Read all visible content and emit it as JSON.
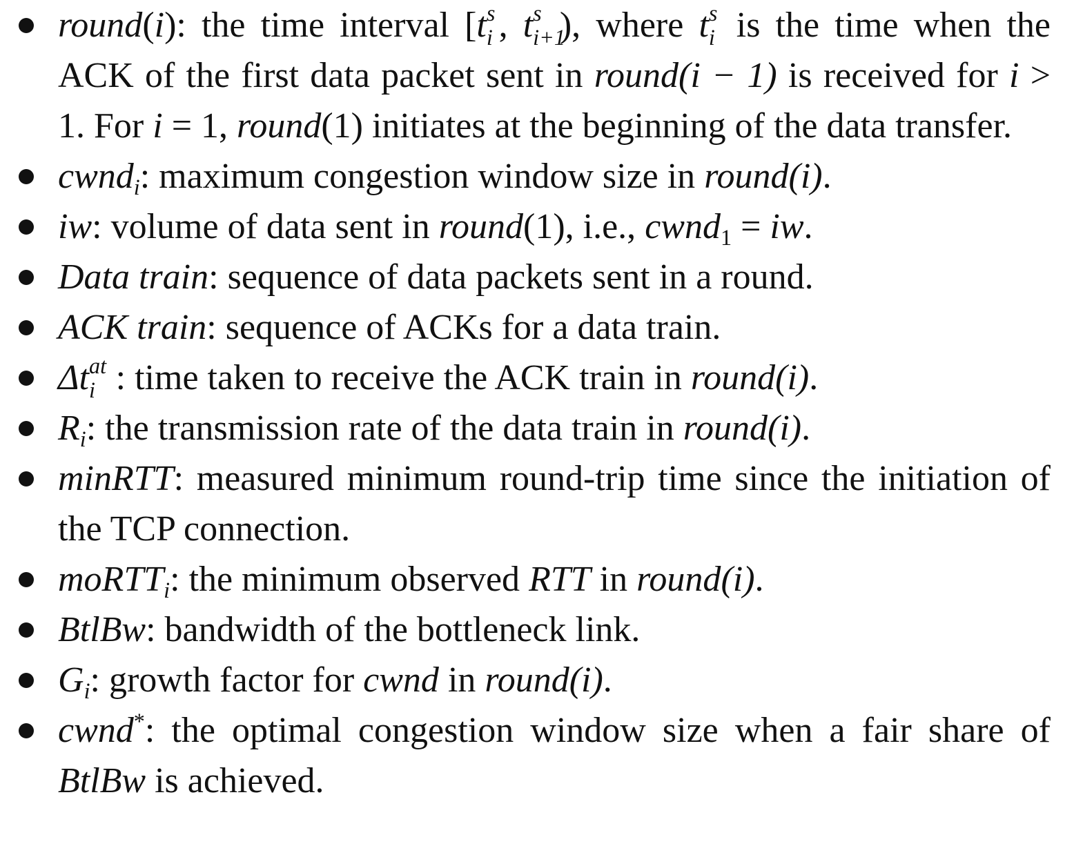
{
  "items": [
    {
      "term": "round",
      "paren_open": "(",
      "arg": "i",
      "paren_close_colon": "):",
      "text_a": " the time interval [",
      "t": "t",
      "sup_s": "s",
      "sub_i": "i",
      "comma": ", ",
      "sub_i1": "i+1",
      "text_b": "), where ",
      "text_c": " is the time when the ACK of the first data packet sent in ",
      "round2": "round",
      "arg2": "(i − 1)",
      "text_d": " is received for ",
      "i1": "i",
      "text_e": " > 1. For ",
      "i2": "i",
      "text_f": " = 1, ",
      "round3": "round",
      "text_g": "(1) initiates at the beginning of the data transfer."
    },
    {
      "term": "cwnd",
      "sub": "i",
      "text": ": maximum congestion window size in ",
      "round": "round",
      "tail": "(i)",
      "end": "."
    },
    {
      "term": "iw",
      "text": ": volume of data sent in ",
      "round": "round",
      "tail": "(1), i.e., ",
      "cwnd": "cwnd",
      "sub": "1",
      "eq": " = ",
      "iw": "iw",
      "end": "."
    },
    {
      "term": "Data train",
      "text": ": sequence of data packets sent in a round."
    },
    {
      "term": "ACK train",
      "text": ": sequence of ACKs for a data train."
    },
    {
      "delta": "Δt",
      "sup": "at",
      "sub": "i",
      "text": ": time taken to receive the ACK train in ",
      "round": "round",
      "tail": "(i)",
      "end": "."
    },
    {
      "term": "R",
      "sub": "i",
      "text": ": the transmission rate of the data train in ",
      "round": "round",
      "tail": "(i)",
      "end": "."
    },
    {
      "term": "minRTT",
      "text": ": measured minimum round-trip time since the initiation of the TCP connection."
    },
    {
      "term": "moRTT",
      "sub": "i",
      "text": ": the minimum observed ",
      "rtt": "RTT",
      "text2": " in ",
      "round": "round",
      "tail": "(i)",
      "end": "."
    },
    {
      "term": "BtlBw",
      "text": ": bandwidth of the bottleneck link."
    },
    {
      "term": "G",
      "sub": "i",
      "text": ": growth factor for ",
      "cwnd": "cwnd",
      "text2": " in ",
      "round": "round",
      "tail": "(i)",
      "end": "."
    },
    {
      "term": "cwnd",
      "star": "*",
      "text": ": the optimal congestion window size when a fair share of ",
      "btlbw": "BtlBw",
      "end": " is achieved."
    }
  ]
}
